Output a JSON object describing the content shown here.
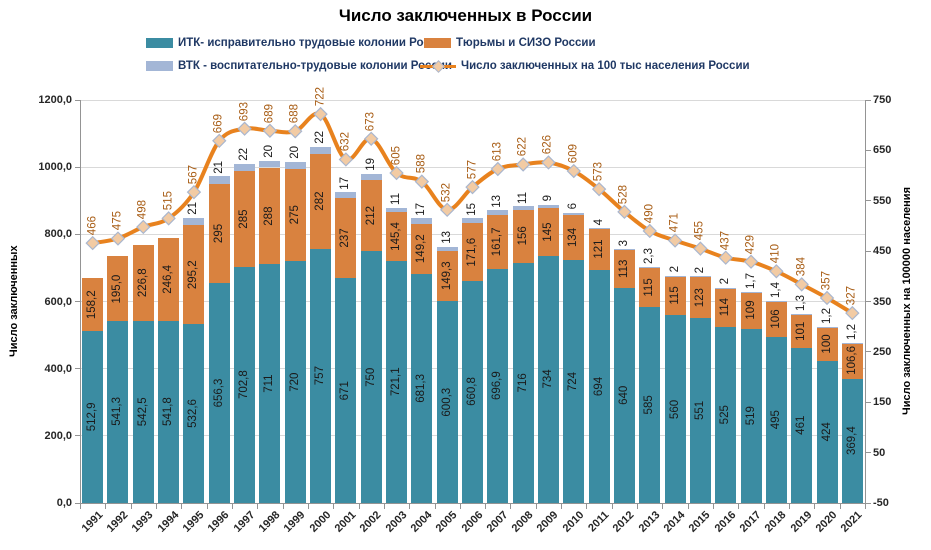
{
  "title": "Число заключенных в России",
  "chart_data": {
    "type": "combo: stacked bar (left axis) + smoothed line with diamond markers (right axis)",
    "legend_position": "top",
    "grid": true,
    "categories": [
      "1991",
      "1992",
      "1993",
      "1994",
      "1995",
      "1996",
      "1997",
      "1998",
      "1999",
      "2000",
      "2001",
      "2002",
      "2003",
      "2004",
      "2005",
      "2006",
      "2007",
      "2008",
      "2009",
      "2010",
      "2011",
      "2012",
      "2013",
      "2014",
      "2015",
      "2016",
      "2017",
      "2018",
      "2019",
      "2020",
      "2021"
    ],
    "series": [
      {
        "key": "itk",
        "name": "ИТК- исправительно трудовые колонии России",
        "chart_type": "stacked-bar",
        "axis": "left",
        "color": "#3B8CA2",
        "values": [
          512.9,
          541.3,
          542.5,
          541.8,
          532.6,
          656.3,
          702.8,
          711,
          720,
          757,
          671,
          750,
          721.1,
          681.3,
          600.3,
          660.8,
          696.9,
          716,
          734,
          724,
          694,
          640,
          585,
          560,
          551,
          525,
          519,
          495,
          461,
          424,
          369.4
        ],
        "labels": [
          "512,9",
          "541,3",
          "542,5",
          "541,8",
          "532,6",
          "656,3",
          "702,8",
          "711",
          "720",
          "757",
          "671",
          "750",
          "721,1",
          "681,3",
          "600,3",
          "660,8",
          "696,9",
          "716",
          "734",
          "724",
          "694",
          "640",
          "585",
          "560",
          "551",
          "525",
          "519",
          "495",
          "461",
          "424",
          "369,4"
        ]
      },
      {
        "key": "tyurmy",
        "name": "Тюрьмы и СИЗО России",
        "chart_type": "stacked-bar",
        "axis": "left",
        "color": "#D9823F",
        "values": [
          158.2,
          195.0,
          226.8,
          246.4,
          295.2,
          295,
          285,
          288,
          275,
          282,
          237,
          212,
          145.4,
          149.2,
          149.3,
          171.6,
          161.7,
          156,
          145,
          134,
          121,
          113,
          115,
          115,
          123,
          114,
          109,
          106,
          101,
          100,
          106.6
        ],
        "labels": [
          "158,2",
          "195,0",
          "226,8",
          "246,4",
          "295,2",
          "295",
          "285",
          "288",
          "275",
          "282",
          "237",
          "212",
          "145,4",
          "149,2",
          "149,3",
          "171,6",
          "161,7",
          "156",
          "145",
          "134",
          "121",
          "113",
          "115",
          "115",
          "123",
          "114",
          "109",
          "106",
          "101",
          "100",
          "106,6"
        ]
      },
      {
        "key": "vtk",
        "name": "ВТК - воспитательно-трудовые колонии России",
        "chart_type": "stacked-bar",
        "axis": "left",
        "color": "#A3B6D6",
        "values": [
          null,
          null,
          null,
          null,
          21,
          21,
          22,
          20,
          20,
          22,
          17,
          19,
          11,
          17,
          13,
          15,
          13,
          11,
          9,
          6,
          4,
          3,
          2.3,
          2,
          2,
          2,
          1.7,
          1.4,
          1.3,
          1.2,
          1.2
        ],
        "labels": [
          null,
          null,
          null,
          null,
          "21",
          "21",
          "22",
          "20",
          "20",
          "22",
          "17",
          "19",
          "11",
          "17",
          "13",
          "15",
          "13",
          "11",
          "9",
          "6",
          "4",
          "3",
          "2,3",
          "2",
          "2",
          "2",
          "1,7",
          "1,4",
          "1,3",
          "1,2",
          "1,2"
        ]
      },
      {
        "key": "rate",
        "name": "Число заключенных на 100 тыс населения России",
        "chart_type": "line",
        "axis": "right",
        "color": "#E8821E",
        "label_color": "#A85D15",
        "marker": {
          "shape": "diamond",
          "fill": "#F2CBA4",
          "stroke": "#A9B6CE"
        },
        "values": [
          466,
          475,
          498,
          515,
          567,
          669,
          693,
          689,
          688,
          722,
          632,
          673,
          605,
          588,
          532,
          577,
          613,
          622,
          626,
          609,
          573,
          528,
          490,
          471,
          455,
          437,
          429,
          410,
          384,
          357,
          327
        ],
        "labels": [
          "466",
          "475",
          "498",
          "515",
          "567",
          "669",
          "693",
          "689",
          "688",
          "722",
          "632",
          "673",
          "605",
          "588",
          "532",
          "577",
          "613",
          "622",
          "626",
          "609",
          "573",
          "528",
          "490",
          "471",
          "455",
          "437",
          "429",
          "410",
          "384",
          "357",
          "327"
        ]
      }
    ],
    "left_axis": {
      "title": "Число заключенных",
      "min": 0,
      "max": 1200,
      "tick_labels": [
        "0,0",
        "200,0",
        "400,0",
        "600,0",
        "800,0",
        "1000,0",
        "1200,0"
      ]
    },
    "right_axis": {
      "title": "Число заключенных на 100000 населения",
      "min": -50,
      "max": 750,
      "tick_labels": [
        "-50",
        "50",
        "150",
        "250",
        "350",
        "450",
        "550",
        "650",
        "750"
      ]
    },
    "colors": {
      "grid": "#D9D9D9",
      "axis": "#949494",
      "bar_label_text": "#1A1A1A",
      "legend_text": "#1F3864",
      "background": "#FFFFFF"
    }
  }
}
